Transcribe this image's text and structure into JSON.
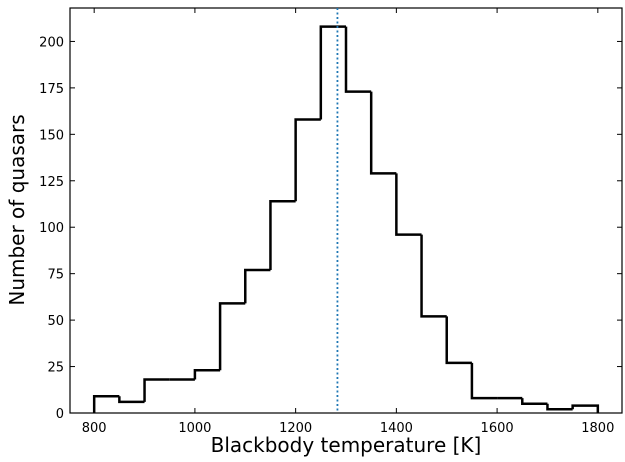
{
  "chart_data": {
    "type": "histogram",
    "x_label": "Blackbody temperature [K]",
    "y_label": "Number of quasars",
    "bins": [
      800,
      850,
      900,
      950,
      1000,
      1050,
      1100,
      1150,
      1200,
      1250,
      1300,
      1350,
      1400,
      1450,
      1500,
      1550,
      1600,
      1650,
      1700,
      1750,
      1800
    ],
    "counts": [
      9,
      6,
      18,
      18,
      23,
      59,
      77,
      114,
      158,
      208,
      173,
      129,
      96,
      52,
      27,
      8,
      8,
      5,
      2,
      4
    ],
    "color": "#000000",
    "vline": {
      "value": 1283,
      "color": "#1f77b4"
    },
    "xlim": [
      752,
      1848
    ],
    "ylim": [
      0,
      218
    ],
    "xticks": [
      800,
      1000,
      1200,
      1400,
      1600,
      1800
    ],
    "yticks": [
      0,
      25,
      50,
      75,
      100,
      125,
      150,
      175,
      200
    ]
  }
}
